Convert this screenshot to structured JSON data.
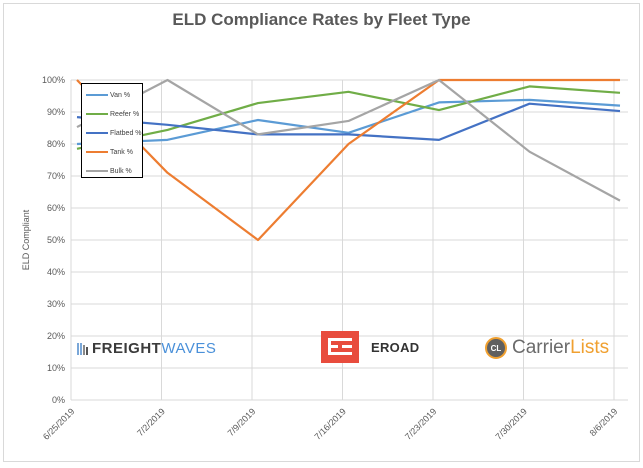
{
  "chart_data": {
    "type": "line",
    "title": "ELD Compliance Rates by Fleet Type",
    "xlabel": "",
    "ylabel": "ELD Compliant",
    "ylim": [
      0,
      100
    ],
    "yticks": [
      "0%",
      "10%",
      "20%",
      "30%",
      "40%",
      "50%",
      "60%",
      "70%",
      "80%",
      "90%",
      "100%"
    ],
    "categories": [
      "6/25/2019",
      "7/2/2019",
      "7/9/2019",
      "7/16/2019",
      "7/23/2019",
      "7/30/2019",
      "8/6/2019"
    ],
    "grid": true,
    "legend_position": "top-left",
    "series": [
      {
        "name": "Van %",
        "color": "#5b9bd5",
        "values": [
          80.0,
          81.3,
          87.5,
          83.5,
          93.0,
          93.8,
          92.0
        ]
      },
      {
        "name": "Reefer %",
        "color": "#70ad47",
        "values": [
          78.5,
          84.4,
          92.8,
          96.3,
          90.6,
          98.0,
          96.0
        ]
      },
      {
        "name": "Flatbed %",
        "color": "#4472c4",
        "values": [
          88.4,
          86.0,
          83.0,
          83.0,
          81.3,
          92.6,
          90.3
        ]
      },
      {
        "name": "Tank %",
        "color": "#ed7d31",
        "values": [
          100.0,
          71.0,
          50.0,
          80.0,
          100.0,
          100.0,
          100.0
        ]
      },
      {
        "name": "Bulk %",
        "color": "#a5a5a5",
        "values": [
          85.3,
          100.0,
          83.0,
          87.2,
          100.0,
          77.6,
          62.3
        ]
      }
    ]
  },
  "logos": {
    "freightwaves": {
      "part1": "FREIGHT",
      "part2": "WAVES",
      "icon": "bars-icon"
    },
    "eroad": {
      "text": "EROAD",
      "icon": "eroad-e-icon"
    },
    "carrierlists": {
      "badge": "CL",
      "part1": "Carrier",
      "part2": "Lists"
    }
  }
}
